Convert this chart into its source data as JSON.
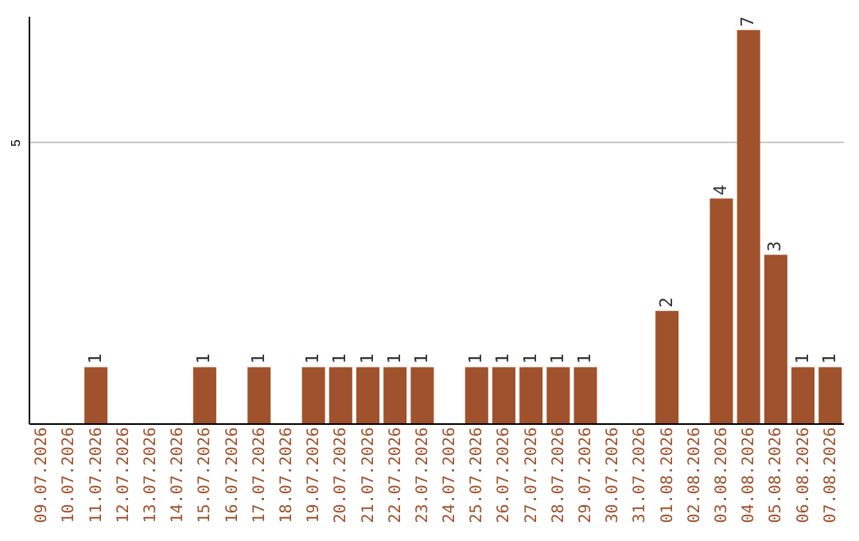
{
  "chart_data": {
    "type": "bar",
    "categories": [
      "09.07.2026",
      "10.07.2026",
      "11.07.2026",
      "12.07.2026",
      "13.07.2026",
      "14.07.2026",
      "15.07.2026",
      "16.07.2026",
      "17.07.2026",
      "18.07.2026",
      "19.07.2026",
      "20.07.2026",
      "21.07.2026",
      "22.07.2026",
      "23.07.2026",
      "24.07.2026",
      "25.07.2026",
      "26.07.2026",
      "27.07.2026",
      "28.07.2026",
      "29.07.2026",
      "30.07.2026",
      "31.07.2026",
      "01.08.2026",
      "02.08.2026",
      "03.08.2026",
      "04.08.2026",
      "05.08.2026",
      "06.08.2026",
      "07.08.2026"
    ],
    "values": [
      null,
      null,
      1,
      null,
      null,
      null,
      1,
      null,
      1,
      null,
      1,
      1,
      1,
      1,
      1,
      null,
      1,
      1,
      1,
      1,
      1,
      null,
      null,
      2,
      null,
      4,
      7,
      3,
      1,
      1
    ],
    "color": "#a0522d",
    "ylim": [
      0,
      7.25
    ],
    "yticks": [
      5
    ],
    "grid": "y",
    "data_labels": true
  }
}
